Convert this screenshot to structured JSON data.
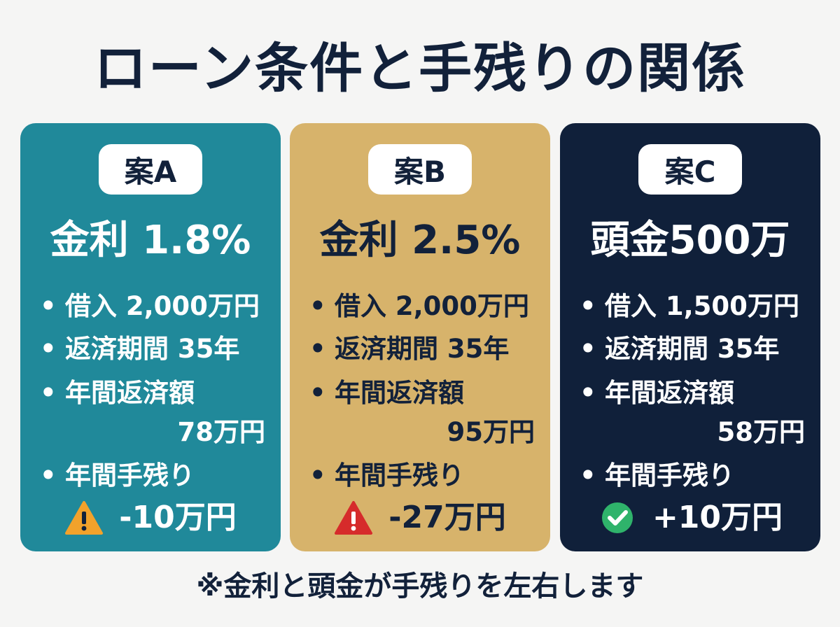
{
  "title": "ローン条件と手残りの関係",
  "footer": "※金利と頭金が手残りを左右します",
  "colors": {
    "plan_a": "#20899a",
    "plan_b": "#d7b36b",
    "plan_c": "#10203a",
    "warning_orange": "#f2a22b",
    "danger_red": "#d62b2b",
    "success_green": "#2fb36b"
  },
  "plans": [
    {
      "label": "案A",
      "headline": "金利 1.8%",
      "loan": "借入 2,000万円",
      "term": "返済期間 35年",
      "annual_payment_label": "年間返済額",
      "annual_payment": "78万円",
      "net_label": "年間手残り",
      "net_value": "-10万円",
      "status_icon": "warning-icon"
    },
    {
      "label": "案B",
      "headline": "金利 2.5%",
      "loan": "借入 2,000万円",
      "term": "返済期間 35年",
      "annual_payment_label": "年間返済額",
      "annual_payment": "95万円",
      "net_label": "年間手残り",
      "net_value": "-27万円",
      "status_icon": "alert-icon"
    },
    {
      "label": "案C",
      "headline": "頭金500万",
      "loan": "借入 1,500万円",
      "term": "返済期間 35年",
      "annual_payment_label": "年間返済額",
      "annual_payment": "58万円",
      "net_label": "年間手残り",
      "net_value": "+10万円",
      "status_icon": "check-circle-icon"
    }
  ]
}
